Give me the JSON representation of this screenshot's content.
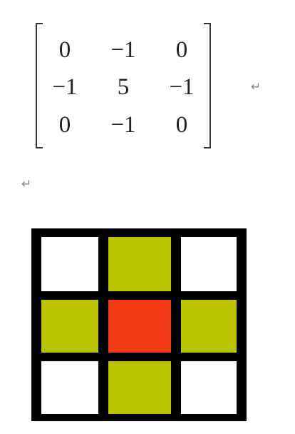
{
  "matrix": {
    "rows": [
      [
        "0",
        "−1",
        "0"
      ],
      [
        "−1",
        "5",
        "−1"
      ],
      [
        "0",
        "−1",
        "0"
      ]
    ]
  },
  "paragraph_mark": "↵",
  "kernel_grid": {
    "colors": {
      "empty": "#ffffff",
      "neighbor": "#b8c400",
      "center": "#f33c14",
      "border": "#000000"
    },
    "cells": [
      [
        "empty",
        "neighbor",
        "empty"
      ],
      [
        "neighbor",
        "center",
        "neighbor"
      ],
      [
        "empty",
        "neighbor",
        "empty"
      ]
    ]
  }
}
